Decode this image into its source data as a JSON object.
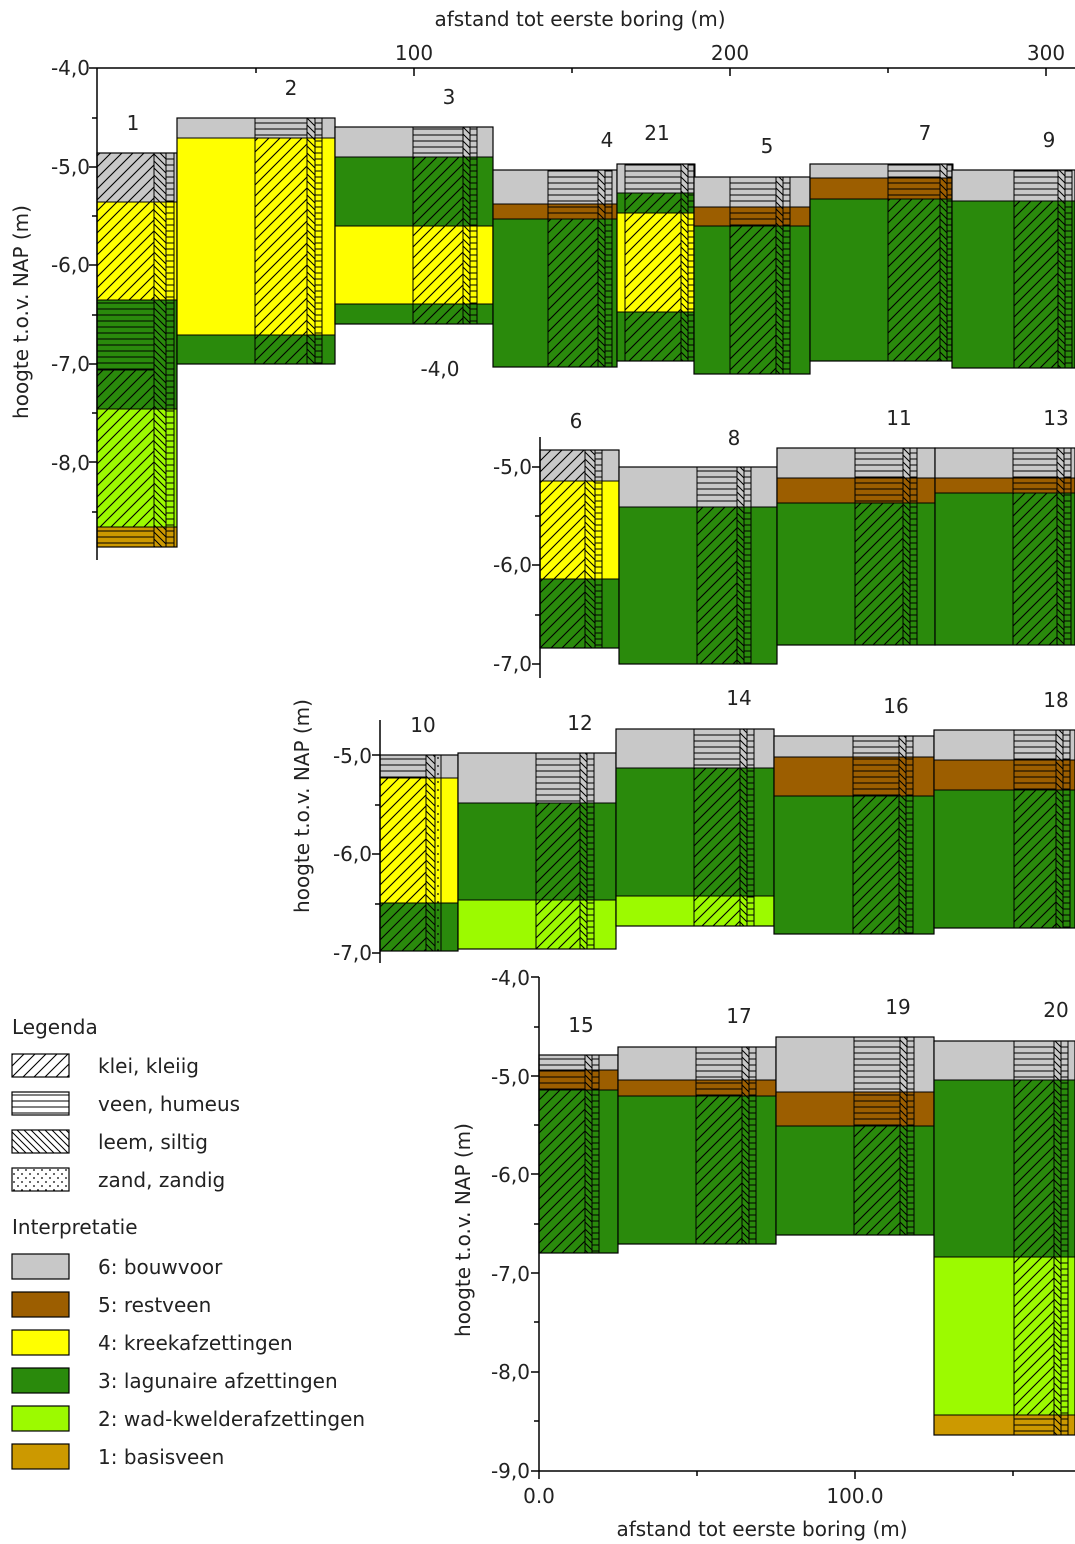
{
  "colors": {
    "bouwvoor": "#c8c8c8",
    "restveen": "#9c5e00",
    "kreek": "#ffff00",
    "lagunair": "#2a8a0c",
    "wad": "#9cfa00",
    "basisveen": "#cc9900"
  },
  "panels": {
    "p1": {
      "xlabel": "afstand tot eerste boring (m)",
      "ylabel": "hoogte t.o.v. NAP (m)",
      "x_ticks": [
        "100",
        "200",
        "300"
      ],
      "y_ticks": [
        "-4,0",
        "-5,0",
        "-6,0",
        "-7,0",
        "-8,0"
      ],
      "bores": [
        "1",
        "2",
        "3",
        "4",
        "21",
        "5",
        "7",
        "9"
      ]
    },
    "p2": {
      "y_ticks": [
        "-4,0",
        "-5,0",
        "-6,0",
        "-7,0"
      ],
      "bores": [
        "6",
        "8",
        "11",
        "13"
      ]
    },
    "p3": {
      "ylabel": "hoogte t.o.v. NAP (m)",
      "y_ticks": [
        "-5,0",
        "-6,0",
        "-7,0"
      ],
      "bores": [
        "10",
        "12",
        "14",
        "16",
        "18"
      ]
    },
    "p4": {
      "xlabel": "afstand tot eerste boring (m)",
      "ylabel": "hoogte t.o.v. NAP (m)",
      "x_ticks": [
        "0.0",
        "100.0"
      ],
      "y_ticks": [
        "-4,0",
        "-5,0",
        "-6,0",
        "-7,0",
        "-8,0",
        "-9,0"
      ],
      "bores": [
        "15",
        "17",
        "19",
        "20"
      ]
    }
  },
  "legend": {
    "title": "Legenda",
    "items": [
      {
        "label": "klei, kleiig",
        "pattern": "clay"
      },
      {
        "label": "veen, humeus",
        "pattern": "peat"
      },
      {
        "label": "leem, siltig",
        "pattern": "loam"
      },
      {
        "label": "zand, zandig",
        "pattern": "sand"
      }
    ]
  },
  "interpretation": {
    "title": "Interpretatie",
    "items": [
      {
        "label": "6: bouwvoor",
        "color_key": "bouwvoor"
      },
      {
        "label": "5: restveen",
        "color_key": "restveen"
      },
      {
        "label": "4: kreekafzettingen",
        "color_key": "kreek"
      },
      {
        "label": "3: lagunaire afzettingen",
        "color_key": "lagunair"
      },
      {
        "label": "2: wad-kwelderafzettingen",
        "color_key": "wad"
      },
      {
        "label": "1: basisveen",
        "color_key": "basisveen"
      }
    ]
  }
}
